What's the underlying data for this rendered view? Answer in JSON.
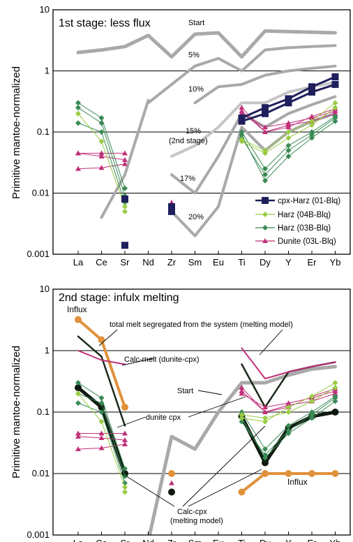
{
  "chart_data": [
    {
      "type": "line",
      "title": "1st stage: less flux",
      "ylabel": "Primitive mantoe-normalized",
      "yscale": "log",
      "ylim": [
        0.001,
        10
      ],
      "yticks": [
        "0.001",
        "0.01",
        "0.1",
        "1",
        "10"
      ],
      "categories": [
        "La",
        "Ce",
        "Sr",
        "Nd",
        "Zr",
        "Sm",
        "Eu",
        "Ti",
        "Dy",
        "Y",
        "Er",
        "Yb"
      ],
      "grid": "horizontal",
      "legend_position": "bottom-right",
      "legend": [
        {
          "label": "cpx-Harz (01-Blq)",
          "color": "#1f1f5c",
          "marker": "square"
        },
        {
          "label": "Harz (04B-Blq)",
          "color": "#99cc44",
          "marker": "diamond"
        },
        {
          "label": "Harz (03B-Blq)",
          "color": "#3a8a55",
          "marker": "diamond"
        },
        {
          "label": "Dunite (03L-Blq)",
          "color": "#c0307a",
          "marker": "triangle"
        }
      ],
      "model_curves": [
        {
          "label": "Start",
          "values": [
            2.0,
            2.2,
            2.5,
            3.8,
            1.7,
            4.0,
            4.2,
            1.7,
            4.5,
            4.4,
            4.3,
            4.2
          ]
        },
        {
          "label": "5%",
          "values": [
            null,
            null,
            null,
            0.3,
            0.6,
            1.2,
            1.6,
            1.0,
            2.2,
            2.4,
            2.5,
            2.6
          ]
        },
        {
          "label": "10%",
          "values": [
            null,
            0.004,
            0.02,
            0.33,
            null,
            0.3,
            0.55,
            0.6,
            0.85,
            1.0,
            1.1,
            1.2
          ]
        },
        {
          "label": "15%",
          "sublabel": "(2nd stage)",
          "values": [
            null,
            null,
            null,
            null,
            0.04,
            0.06,
            0.12,
            0.3,
            0.3,
            0.45,
            0.55,
            0.65
          ]
        },
        {
          "label": "17%",
          "values": [
            null,
            null,
            null,
            null,
            0.02,
            0.01,
            0.04,
            0.2,
            0.12,
            0.2,
            0.28,
            0.38
          ]
        },
        {
          "label": "20%",
          "values": [
            null,
            null,
            null,
            null,
            0.005,
            0.002,
            0.006,
            0.12,
            0.05,
            0.1,
            0.15,
            0.2
          ]
        }
      ],
      "samples": [
        {
          "label": "Dunite (03L-Blq)",
          "values": [
            0.045,
            0.045,
            0.045,
            null,
            null,
            null,
            null,
            0.22,
            0.1,
            0.13,
            0.15,
            0.2
          ]
        },
        {
          "label": "Dunite (03L-Blq)",
          "values": [
            0.045,
            0.04,
            0.035,
            null,
            null,
            null,
            null,
            0.2,
            0.12,
            0.14,
            0.17,
            0.22
          ]
        },
        {
          "label": "Dunite (03L-Blq)",
          "values": [
            0.025,
            0.026,
            0.03,
            null,
            0.007,
            null,
            null,
            0.25,
            0.1,
            0.12,
            0.18,
            0.24
          ]
        },
        {
          "label": "Harz (03B-Blq)",
          "values": [
            0.3,
            0.17,
            0.012,
            null,
            null,
            null,
            null,
            0.1,
            0.025,
            0.06,
            0.1,
            0.18
          ]
        },
        {
          "label": "Harz (03B-Blq)",
          "values": [
            0.25,
            0.14,
            0.009,
            null,
            null,
            null,
            null,
            0.09,
            0.016,
            0.04,
            0.08,
            0.15
          ]
        },
        {
          "label": "Harz (03B-Blq)",
          "values": [
            0.14,
            0.1,
            0.007,
            null,
            null,
            null,
            null,
            0.08,
            0.02,
            0.05,
            0.09,
            0.17
          ]
        },
        {
          "label": "Harz (04B-Blq)",
          "values": [
            0.2,
            0.07,
            0.006,
            null,
            null,
            null,
            null,
            0.075,
            0.05,
            0.1,
            0.15,
            0.3
          ]
        },
        {
          "label": "Harz (04B-Blq)",
          "values": [
            null,
            null,
            0.005,
            null,
            null,
            null,
            null,
            0.07,
            0.045,
            0.08,
            0.13,
            0.25
          ]
        },
        {
          "label": "cpx-Harz (01-Blq)",
          "values": [
            null,
            null,
            0.0014,
            null,
            0.005,
            null,
            null,
            0.17,
            0.25,
            0.35,
            0.55,
            0.8
          ]
        },
        {
          "label": "cpx-Harz (01-Blq)",
          "values": [
            null,
            null,
            0.008,
            null,
            0.006,
            null,
            null,
            0.15,
            0.2,
            0.3,
            0.45,
            0.6
          ]
        }
      ]
    },
    {
      "type": "line",
      "title": "2nd stage: infulx melting",
      "ylabel": "Primitive mantoe-normalized",
      "yscale": "log",
      "ylim": [
        0.001,
        10
      ],
      "yticks": [
        "0.001",
        "0.01",
        "0.1",
        "1",
        "10"
      ],
      "categories": [
        "La",
        "Ce",
        "Sr",
        "Nd",
        "Zr",
        "Sm",
        "Eu",
        "Ti",
        "Dy",
        "Y",
        "Er",
        "Yb"
      ],
      "grid": "horizontal",
      "annotations": [
        "Influx",
        "total melt segregated from the system (melting model)",
        "Calc-melt (dunite-cpx)",
        "Start",
        "dunite cpx",
        "Influx",
        "Calc-cpx",
        "(melting model)"
      ],
      "model_curves": [
        {
          "label": "Start",
          "values": [
            null,
            null,
            null,
            0.0008,
            0.04,
            0.025,
            0.1,
            0.3,
            0.3,
            0.4,
            0.5,
            0.55
          ]
        },
        {
          "label": "Influx",
          "values": [
            3.2,
            1.5,
            0.12,
            null,
            0.01,
            null,
            null,
            0.005,
            0.01,
            0.01,
            0.01,
            0.01
          ]
        },
        {
          "label": "total melt segregated from the system (melting model)",
          "values": [
            1.7,
            0.8,
            0.06,
            null,
            null,
            null,
            null,
            0.6,
            0.12,
            0.45,
            0.55,
            0.65
          ]
        },
        {
          "label": "Calc-melt (dunite-cpx)",
          "values": [
            1.0,
            0.7,
            0.6,
            null,
            null,
            null,
            null,
            1.1,
            0.35,
            0.45,
            0.55,
            0.65
          ]
        },
        {
          "label": "Calc-cpx (melting model)",
          "values": [
            0.25,
            0.12,
            0.01,
            null,
            0.005,
            null,
            null,
            0.085,
            0.015,
            0.055,
            0.085,
            0.1
          ]
        }
      ],
      "samples": [
        {
          "label": "dunite cpx",
          "values": [
            0.045,
            0.045,
            0.045,
            null,
            null,
            null,
            null,
            0.22,
            0.1,
            0.13,
            0.15,
            0.2
          ]
        },
        {
          "label": "dunite cpx",
          "values": [
            0.04,
            0.038,
            0.035,
            null,
            null,
            null,
            null,
            0.2,
            0.12,
            0.14,
            0.17,
            0.22
          ]
        },
        {
          "label": "dunite cpx",
          "values": [
            0.025,
            0.026,
            0.03,
            null,
            0.007,
            null,
            null,
            0.25,
            0.1,
            0.12,
            0.18,
            0.24
          ]
        },
        {
          "label": "Harz (03B-Blq)",
          "values": [
            0.3,
            0.17,
            0.012,
            null,
            null,
            null,
            null,
            0.1,
            0.025,
            0.06,
            0.1,
            0.18
          ]
        },
        {
          "label": "Harz (03B-Blq)",
          "values": [
            0.2,
            0.14,
            0.009,
            null,
            null,
            null,
            null,
            0.08,
            0.018,
            0.045,
            0.08,
            0.15
          ]
        },
        {
          "label": "Harz (03B-Blq)",
          "values": [
            0.14,
            0.1,
            0.007,
            null,
            null,
            null,
            null,
            0.07,
            0.02,
            0.05,
            0.09,
            0.17
          ]
        },
        {
          "label": "Harz (04B-Blq)",
          "values": [
            0.2,
            0.07,
            0.006,
            null,
            null,
            null,
            null,
            0.08,
            0.07,
            0.12,
            0.18,
            0.3
          ]
        },
        {
          "label": "Harz (04B-Blq)",
          "values": [
            null,
            null,
            0.005,
            null,
            null,
            null,
            null,
            0.09,
            0.08,
            0.1,
            0.15,
            0.25
          ]
        }
      ]
    }
  ]
}
